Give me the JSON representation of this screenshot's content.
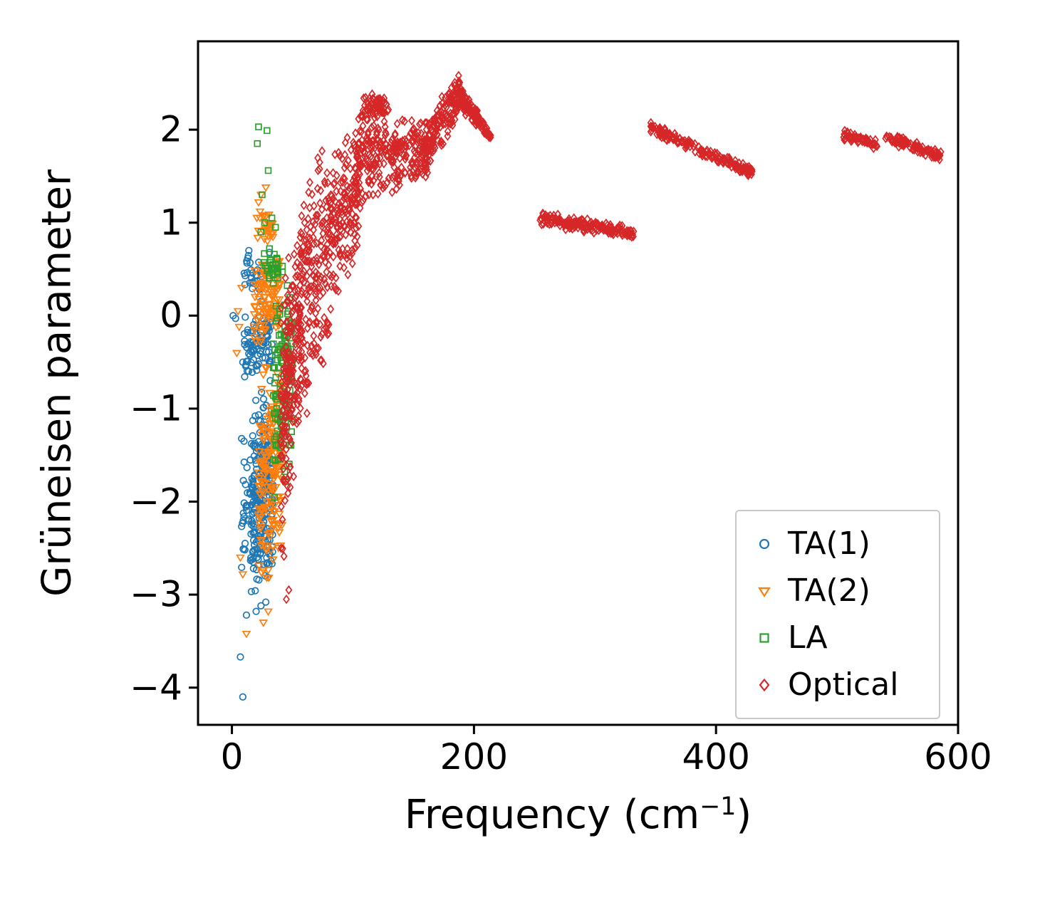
{
  "chart_data": {
    "type": "scatter",
    "title": "",
    "xlabel": "Frequency (cm⁻¹)",
    "xlabel_prefix": "Frequency (cm",
    "xlabel_superscript": "−1",
    "xlabel_suffix": ")",
    "ylabel": "Grüneisen parameter",
    "xlim": [
      -28,
      600
    ],
    "ylim": [
      -4.4,
      2.95
    ],
    "xticks": [
      0,
      200,
      400,
      600
    ],
    "yticks": [
      -4,
      -3,
      -2,
      -1,
      0,
      1,
      2
    ],
    "grid": false,
    "legend_position": "lower right",
    "series": [
      {
        "id": "ta1",
        "name": "TA(1)",
        "marker": "circle",
        "color": "#1f77b4",
        "seed": 11,
        "points": [
          [
            1,
            0.0
          ],
          [
            3,
            -0.03
          ],
          [
            9,
            -4.1
          ],
          [
            7,
            -3.67
          ],
          [
            12,
            -3.22
          ],
          [
            20,
            -3.18
          ],
          [
            24,
            -3.12
          ],
          [
            28,
            -3.08
          ],
          [
            10,
            -1.35
          ],
          [
            9,
            -0.5
          ],
          [
            31,
            0.68
          ],
          [
            14,
            0.7
          ]
        ],
        "clusters": [
          {
            "n": 250,
            "x": [
              16,
              34
            ],
            "y_lo": [
              -3.05,
              -2.85
            ],
            "y_hi": [
              -0.85,
              -0.6
            ]
          },
          {
            "n": 90,
            "x": [
              10,
              33
            ],
            "y_lo": [
              -0.75,
              -0.6
            ],
            "y_hi": [
              0.05,
              0.15
            ]
          },
          {
            "n": 28,
            "x": [
              10,
              26
            ],
            "y_lo": [
              0.15,
              0.15
            ],
            "y_hi": [
              0.72,
              0.6
            ]
          },
          {
            "n": 30,
            "x": [
              8,
              16
            ],
            "y_lo": [
              -2.95,
              -3.0
            ],
            "y_hi": [
              -1.1,
              -1.5
            ]
          }
        ]
      },
      {
        "id": "ta2",
        "name": "TA(2)",
        "marker": "triangle-down",
        "color": "#ff7f0e",
        "seed": 22,
        "points": [
          [
            12,
            -3.42
          ],
          [
            26,
            -3.3
          ],
          [
            30,
            -3.18
          ],
          [
            9,
            -2.78
          ],
          [
            7,
            -2.6
          ],
          [
            28,
            1.38
          ],
          [
            24,
            1.3
          ],
          [
            22,
            1.22
          ],
          [
            5,
            0.05
          ],
          [
            6,
            -0.12
          ],
          [
            8,
            0.3
          ],
          [
            4,
            -0.4
          ]
        ],
        "clusters": [
          {
            "n": 190,
            "x": [
              22,
              42
            ],
            "y_lo": [
              -3.0,
              -2.75
            ],
            "y_hi": [
              -0.45,
              -0.2
            ]
          },
          {
            "n": 110,
            "x": [
              18,
              40
            ],
            "y_lo": [
              -0.4,
              -0.2
            ],
            "y_hi": [
              0.6,
              0.72
            ]
          },
          {
            "n": 28,
            "x": [
              20,
              34
            ],
            "y_lo": [
              0.7,
              0.72
            ],
            "y_hi": [
              1.3,
              1.05
            ]
          }
        ]
      },
      {
        "id": "la",
        "name": "LA",
        "marker": "square",
        "color": "#2ca02c",
        "seed": 33,
        "points": [
          [
            22,
            2.03
          ],
          [
            29,
            1.99
          ],
          [
            21,
            1.85
          ],
          [
            30,
            1.56
          ],
          [
            25,
            1.3
          ],
          [
            33,
            1.05
          ],
          [
            27,
            1.0
          ],
          [
            36,
            0.95
          ],
          [
            31,
            0.72
          ],
          [
            35,
            0.66
          ],
          [
            24,
            0.9
          ]
        ],
        "clusters": [
          {
            "n": 120,
            "x": [
              34,
              50
            ],
            "y_lo": [
              -2.05,
              -1.85
            ],
            "y_hi": [
              0.3,
              0.55
            ]
          },
          {
            "n": 30,
            "x": [
              26,
              42
            ],
            "y_lo": [
              0.28,
              0.3
            ],
            "y_hi": [
              0.72,
              0.6
            ]
          }
        ]
      },
      {
        "id": "optical",
        "name": "Optical",
        "marker": "diamond",
        "color": "#d62728",
        "seed": 44,
        "points": [
          [
            45,
            -3.05
          ],
          [
            47,
            -2.95
          ],
          [
            62,
            -1.05
          ],
          [
            70,
            -0.35
          ]
        ],
        "clusters": [
          {
            "n": 220,
            "x": [
              40,
              58
            ],
            "y_lo": [
              -3.0,
              -1.1
            ],
            "y_hi": [
              0.15,
              1.55
            ]
          },
          {
            "n": 300,
            "x": [
              56,
              105
            ],
            "y_lo": [
              -0.85,
              0.6
            ],
            "y_hi": [
              1.65,
              2.15
            ]
          },
          {
            "n": 30,
            "x": [
              58,
              82
            ],
            "y_lo": [
              -1.05,
              -0.45
            ],
            "y_hi": [
              -0.3,
              0.2
            ]
          },
          {
            "n": 300,
            "x": [
              100,
              165
            ],
            "y_lo": [
              1.1,
              1.45
            ],
            "y_hi": [
              2.3,
              2.1
            ]
          },
          {
            "n": 60,
            "x": [
              108,
              130
            ],
            "y_lo": [
              2.12,
              2.16
            ],
            "y_hi": [
              2.42,
              2.36
            ]
          },
          {
            "n": 130,
            "x": [
              158,
              188
            ],
            "y_lo": [
              1.52,
              2.08
            ],
            "y_hi": [
              2.06,
              2.66
            ]
          },
          {
            "n": 130,
            "x": [
              184,
              214
            ],
            "y_lo": [
              2.28,
              1.86
            ],
            "y_hi": [
              2.62,
              1.96
            ]
          },
          {
            "n": 170,
            "x": [
              254,
              332
            ],
            "y_lo": [
              0.95,
              0.82
            ],
            "y_hi": [
              1.13,
              0.96
            ]
          },
          {
            "n": 170,
            "x": [
              346,
              430
            ],
            "y_lo": [
              1.95,
              1.47
            ],
            "y_hi": [
              2.09,
              1.6
            ]
          },
          {
            "n": 60,
            "x": [
              505,
              533
            ],
            "y_lo": [
              1.88,
              1.78
            ],
            "y_hi": [
              2.0,
              1.9
            ]
          },
          {
            "n": 90,
            "x": [
              540,
              586
            ],
            "y_lo": [
              1.86,
              1.66
            ],
            "y_hi": [
              1.98,
              1.78
            ]
          }
        ]
      }
    ]
  }
}
